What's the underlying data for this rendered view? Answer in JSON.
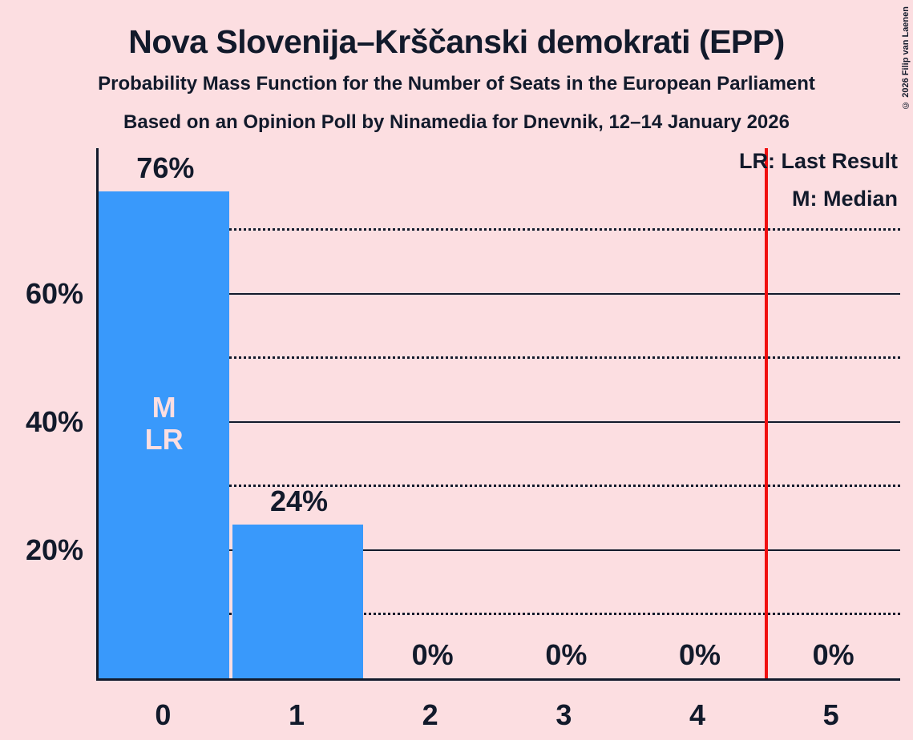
{
  "title": "Nova Slovenija–Krščanski demokrati (EPP)",
  "subtitle1": "Probability Mass Function for the Number of Seats in the European Parliament",
  "subtitle2": "Based on an Opinion Poll by Ninamedia for Dnevnik, 12–14 January 2026",
  "copyright": "© 2026 Filip van Laenen",
  "legend": {
    "lr": "LR: Last Result",
    "m": "M: Median"
  },
  "colors": {
    "background": "#fcdee1",
    "bar_blue": "#3999fb",
    "text_dark": "#121a2b",
    "red_line": "#f01010",
    "in_bar_text": "#fcdee1"
  },
  "chart_data": {
    "type": "bar",
    "title": "Nova Slovenija–Krščanski demokrati (EPP)",
    "subtitle": "Probability Mass Function for the Number of Seats in the European Parliament",
    "source_line": "Based on an Opinion Poll by Ninamedia for Dnevnik, 12–14 January 2026",
    "categories": [
      "0",
      "1",
      "2",
      "3",
      "4",
      "5"
    ],
    "values": [
      76,
      24,
      0,
      0,
      0,
      0
    ],
    "bar_value_labels": [
      "76%",
      "24%",
      "0%",
      "0%",
      "0%",
      "0%"
    ],
    "xlabel": "",
    "ylabel": "",
    "ylim": [
      0,
      82.75
    ],
    "ytick_values": [
      20,
      40,
      60
    ],
    "ytick_labels": [
      "20%",
      "40%",
      "60%"
    ],
    "solid_gridlines": [
      20,
      40,
      60
    ],
    "dotted_gridlines": [
      10,
      30,
      50,
      70
    ],
    "red_vertical_line_x": 4.5,
    "median_seats": 0,
    "last_result_seats": 0,
    "in_bar_annotation": {
      "category_index": 0,
      "lines": [
        "M",
        "LR"
      ]
    },
    "legend_entries": [
      "LR: Last Result",
      "M: Median"
    ],
    "legend_position": "top-right",
    "grid": "horizontal; solid at 20/40/60, dotted at 10/30/50/70"
  }
}
